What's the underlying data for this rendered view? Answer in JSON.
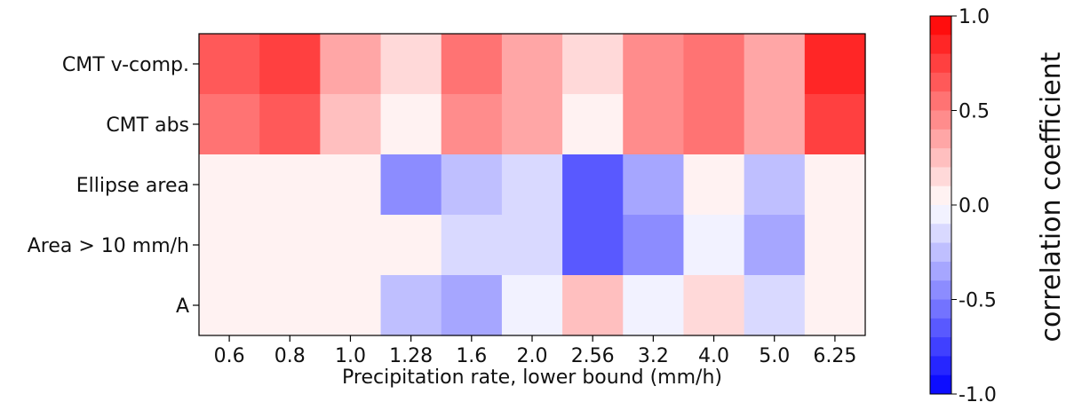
{
  "chart_data": {
    "type": "heatmap",
    "title": "",
    "xlabel": "Precipitation rate, lower bound (mm/h)",
    "ylabel": "",
    "x_categories": [
      "0.6",
      "0.8",
      "1.0",
      "1.28",
      "1.6",
      "2.0",
      "2.56",
      "3.2",
      "4.0",
      "5.0",
      "6.25"
    ],
    "y_categories": [
      "CMT v-comp.",
      "CMT abs",
      "Ellipse area",
      "Area > 10 mm/h",
      "A"
    ],
    "values": [
      [
        0.6,
        0.75,
        0.3,
        0.1,
        0.55,
        0.35,
        0.15,
        0.45,
        0.55,
        0.35,
        0.8
      ],
      [
        0.55,
        0.65,
        0.25,
        0.05,
        0.45,
        0.3,
        0.05,
        0.4,
        0.5,
        0.35,
        0.75
      ],
      [
        0.0,
        0.0,
        0.0,
        -0.45,
        -0.3,
        -0.15,
        -0.7,
        -0.4,
        0.03,
        -0.25,
        0.02
      ],
      [
        0.0,
        0.0,
        0.0,
        0.02,
        -0.15,
        -0.15,
        -0.7,
        -0.45,
        -0.03,
        -0.4,
        0.02
      ],
      [
        0.0,
        0.0,
        0.0,
        -0.25,
        -0.35,
        -0.03,
        0.2,
        -0.1,
        0.1,
        -0.2,
        0.06
      ]
    ],
    "colorbar": {
      "label": "correlation coefficient",
      "range": [
        -1.0,
        1.0
      ],
      "ticks": [
        "1.0",
        "0.5",
        "0.0",
        "-0.5",
        "-1.0"
      ],
      "tick_values": [
        1.0,
        0.5,
        0.0,
        -0.5,
        -1.0
      ],
      "levels": 20,
      "colormap": "bwr",
      "color_min": "#0000ff",
      "color_mid": "#ffffff",
      "color_max": "#ff0000"
    }
  }
}
